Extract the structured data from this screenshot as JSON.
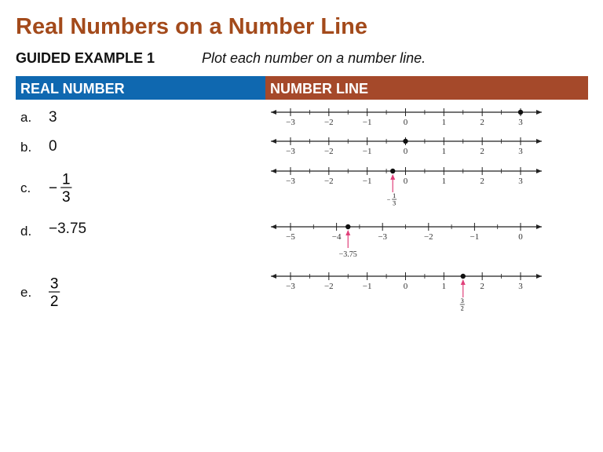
{
  "header": {
    "title": "Real Numbers on a Number Line",
    "label": "GUIDED EXAMPLE 1",
    "instruction": "Plot each number on a number line."
  },
  "table": {
    "columns": [
      "REAL NUMBER",
      "NUMBER LINE"
    ],
    "rows": [
      {
        "letter": "a.",
        "number": "3",
        "line": {
          "ticks": [
            {
              "value": -3,
              "label": "−3"
            },
            {
              "value": -2,
              "label": "−2"
            },
            {
              "value": -1,
              "label": "−1"
            },
            0,
            1,
            2,
            3
          ],
          "point": 3
        }
      },
      {
        "letter": "b.",
        "number": "0",
        "line": {
          "ticks": [
            {
              "value": -3,
              "label": "−3"
            },
            {
              "value": -2,
              "label": "−2"
            },
            {
              "value": -1,
              "label": "−1"
            },
            0,
            1,
            2,
            3
          ],
          "point": 0
        }
      },
      {
        "letter": "c.",
        "number": {
          "sign": "−",
          "numerator": "1",
          "denominator": "3"
        },
        "line": {
          "ticks": [
            {
              "value": -3,
              "label": "−3"
            },
            {
              "value": -2,
              "label": "−2"
            },
            {
              "value": -1,
              "label": "−1"
            },
            0,
            1,
            2,
            3
          ],
          "point": -0.3333,
          "annotation": {
            "sign": "−",
            "numerator": "1",
            "denominator": "3"
          }
        }
      },
      {
        "letter": "d.",
        "number": "−3.75",
        "line": {
          "ticks": [
            {
              "value": -5,
              "label": "−5"
            },
            {
              "value": -4,
              "label": "−4"
            },
            {
              "value": -3,
              "label": "−3"
            },
            {
              "value": -2,
              "label": "−2"
            },
            {
              "value": -1,
              "label": "−1"
            },
            0
          ],
          "point": -3.75,
          "annotation": {
            "text": "−3.75"
          }
        }
      },
      {
        "letter": "e.",
        "number": {
          "numerator": "3",
          "denominator": "2"
        },
        "line": {
          "ticks": [
            {
              "value": -3,
              "label": "−3"
            },
            {
              "value": -2,
              "label": "−2"
            },
            {
              "value": -1,
              "label": "−1"
            },
            0,
            1,
            2,
            3
          ],
          "point": 1.5,
          "annotation": {
            "numerator": "3",
            "denominator": "2"
          }
        }
      }
    ]
  }
}
